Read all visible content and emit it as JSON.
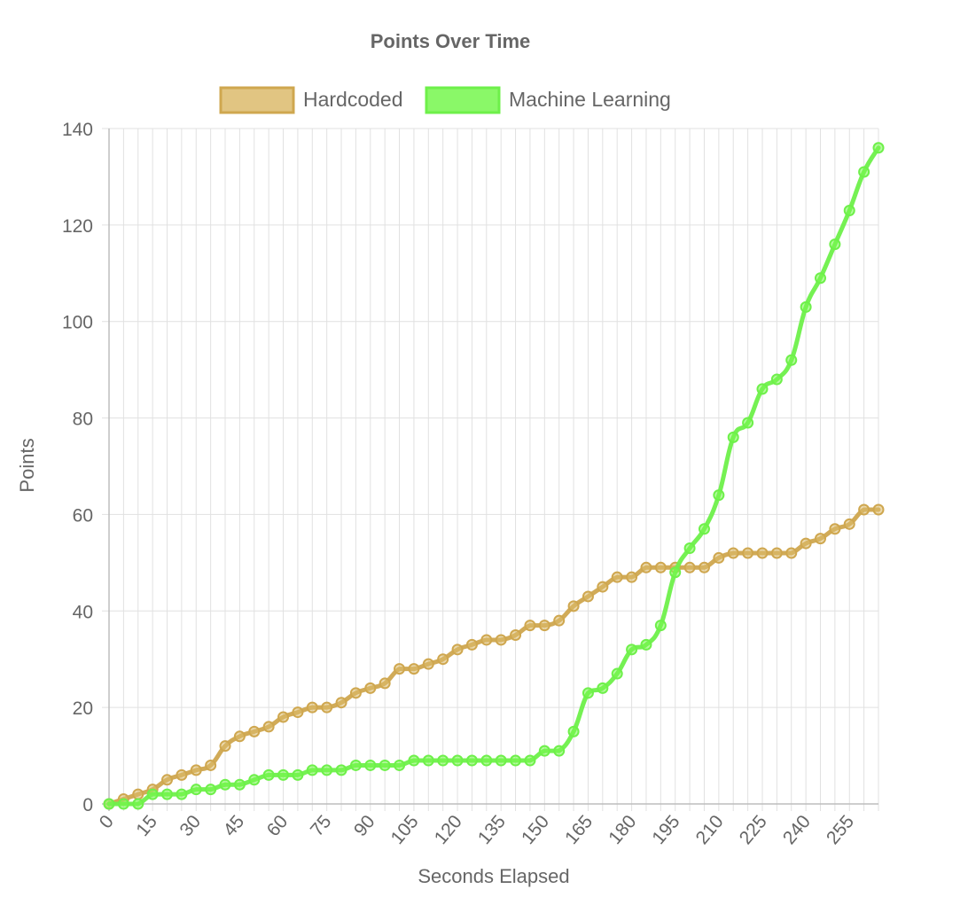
{
  "chart_data": {
    "type": "line",
    "title": "Points Over Time",
    "xlabel": "Seconds Elapsed",
    "ylabel": "Points",
    "xlim": [
      0,
      265
    ],
    "ylim": [
      0,
      140
    ],
    "y_ticks": [
      0,
      20,
      40,
      60,
      80,
      100,
      120,
      140
    ],
    "x_ticks": [
      0,
      15,
      30,
      45,
      60,
      75,
      90,
      105,
      120,
      135,
      150,
      165,
      180,
      195,
      210,
      225,
      240,
      255
    ],
    "grid": true,
    "legend_position": "top",
    "x": [
      0,
      5,
      10,
      15,
      20,
      25,
      30,
      35,
      40,
      45,
      50,
      55,
      60,
      65,
      70,
      75,
      80,
      85,
      90,
      95,
      100,
      105,
      110,
      115,
      120,
      125,
      130,
      135,
      140,
      145,
      150,
      155,
      160,
      165,
      170,
      175,
      180,
      185,
      190,
      195,
      200,
      205,
      210,
      215,
      220,
      225,
      230,
      235,
      240,
      245,
      250,
      255,
      260,
      265
    ],
    "series": [
      {
        "name": "Hardcoded",
        "color": "#cfa74f",
        "fill": "#dcbb6c",
        "values": [
          0,
          1,
          2,
          3,
          5,
          6,
          7,
          8,
          12,
          14,
          15,
          16,
          18,
          19,
          20,
          20,
          21,
          23,
          24,
          25,
          28,
          28,
          29,
          30,
          32,
          33,
          34,
          34,
          35,
          37,
          37,
          38,
          41,
          43,
          45,
          47,
          47,
          49,
          49,
          49,
          49,
          49,
          51,
          52,
          52,
          52,
          52,
          52,
          54,
          55,
          57,
          58,
          61,
          61
        ]
      },
      {
        "name": "Machine Learning",
        "color": "#6ef04a",
        "fill": "#76f74e",
        "values": [
          0,
          0,
          0,
          2,
          2,
          2,
          3,
          3,
          4,
          4,
          5,
          6,
          6,
          6,
          7,
          7,
          7,
          8,
          8,
          8,
          8,
          9,
          9,
          9,
          9,
          9,
          9,
          9,
          9,
          9,
          11,
          11,
          15,
          23,
          24,
          27,
          32,
          33,
          37,
          48,
          53,
          57,
          64,
          76,
          79,
          86,
          88,
          92,
          103,
          109,
          116,
          123,
          131,
          136
        ]
      }
    ]
  }
}
